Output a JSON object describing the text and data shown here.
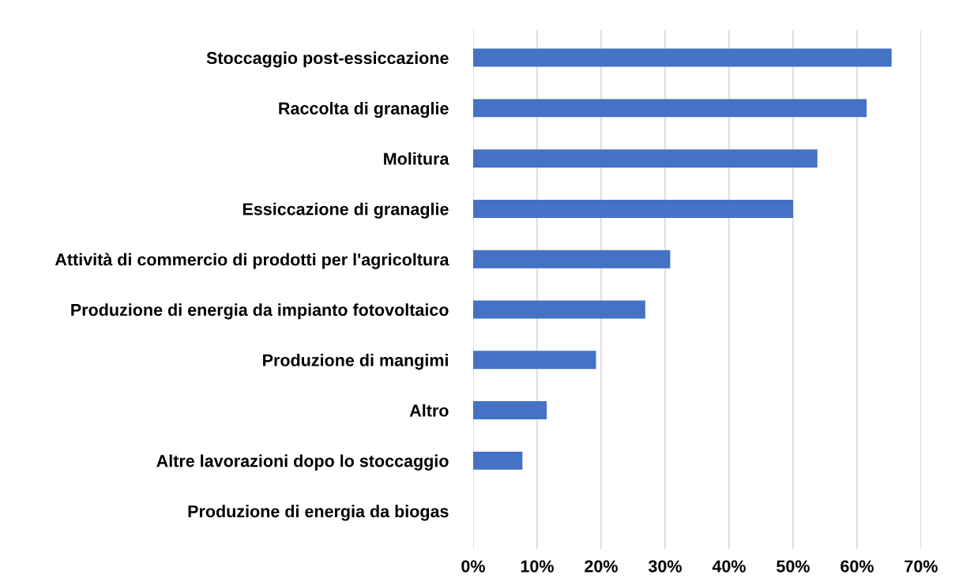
{
  "chart_data": {
    "type": "bar",
    "orientation": "horizontal",
    "categories": [
      "Stoccaggio post-essiccazione",
      "Raccolta di granaglie",
      "Molitura",
      "Essiccazione di granaglie",
      "Attività di commercio di prodotti per l'agricoltura",
      "Produzione di energia da impianto fotovoltaico",
      "Produzione di mangimi",
      "Altro",
      "Altre lavorazioni dopo lo stoccaggio",
      "Produzione di energia da biogas"
    ],
    "values": [
      65.4,
      61.5,
      53.8,
      50.0,
      30.8,
      26.9,
      19.2,
      11.5,
      7.7,
      0
    ],
    "color": "#4472c4",
    "xlim": [
      0,
      70
    ],
    "xticks": [
      {
        "value": 0,
        "label": "0%"
      },
      {
        "value": 10,
        "label": "10%"
      },
      {
        "value": 20,
        "label": "20%"
      },
      {
        "value": 30,
        "label": "30%"
      },
      {
        "value": 40,
        "label": "40%"
      },
      {
        "value": 50,
        "label": "50%"
      },
      {
        "value": 60,
        "label": "60%"
      },
      {
        "value": 70,
        "label": "70%"
      }
    ],
    "grid": "x"
  }
}
